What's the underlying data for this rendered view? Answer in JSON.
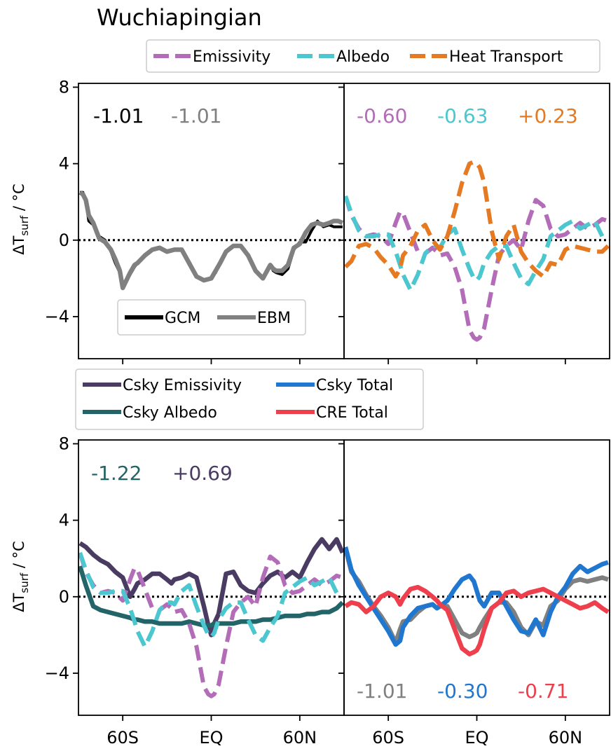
{
  "title": "Wuchiapingian",
  "ylabel_main": "ΔT",
  "ylabel_sub": "surf",
  "ylabel_unit": " / °C",
  "y_ticks": [
    8,
    4,
    0,
    -4
  ],
  "y_tick_labels": [
    "8",
    "4",
    "0",
    "−4"
  ],
  "x_ticks": [
    -60,
    0,
    60
  ],
  "x_tick_labels": [
    "60S",
    "EQ",
    "60N"
  ],
  "legend_top": [
    "Emissivity",
    "Albedo",
    "Heat Transport"
  ],
  "legend_top_left": [
    "GCM",
    "EBM"
  ],
  "legend_middle": [
    "Csky Emissivity",
    "Csky Total",
    "Csky Albedo",
    "CRE Total"
  ],
  "colors": {
    "GCM": "#000000",
    "EBM": "#808080",
    "Emissivity": "#b36db8",
    "Albedo": "#4cc7cf",
    "Heat Transport": "#e57a22",
    "Csky Emissivity": "#4a3b63",
    "Csky Albedo": "#226468",
    "Csky Total": "#1f77d0",
    "CRE Total": "#ee3f4d",
    "zero_line": "#000000"
  },
  "chart_data": [
    {
      "type": "line",
      "panel": "top-left",
      "xlim": [
        -90,
        90
      ],
      "ylim": [
        -6.2,
        8.2
      ],
      "zero_line": "dotted",
      "annotations": [
        "-1.01",
        "-1.01"
      ],
      "annotation_colors": [
        "#000000",
        "#808080"
      ],
      "legend": "lower-center",
      "x": [
        -89,
        -87,
        -85,
        -83,
        -80,
        -76,
        -72,
        -68,
        -65,
        -62,
        -60,
        -55,
        -52,
        -50,
        -45,
        -40,
        -35,
        -30,
        -25,
        -20,
        -15,
        -10,
        -5,
        0,
        3,
        6,
        10,
        15,
        20,
        25,
        30,
        35,
        40,
        42,
        44,
        48,
        52,
        56,
        60,
        64,
        68,
        72,
        76,
        80,
        83,
        86,
        89
      ],
      "series": [
        {
          "name": "GCM",
          "style": "solid",
          "values": [
            2.5,
            2.5,
            2.0,
            1.0,
            0.8,
            0.2,
            0.0,
            -0.6,
            -1.2,
            -1.7,
            -2.3,
            -1.8,
            -1.4,
            -1.2,
            -0.8,
            -0.5,
            -0.4,
            -0.6,
            -0.5,
            -0.5,
            -1.2,
            -1.9,
            -2.1,
            -2.0,
            -1.7,
            -1.2,
            -0.6,
            -0.3,
            -0.3,
            -0.8,
            -1.6,
            -2.0,
            -1.3,
            -1.6,
            -1.7,
            -1.8,
            -1.5,
            -0.5,
            -0.1,
            -0.1,
            0.5,
            1.0,
            0.7,
            0.8,
            0.7,
            0.7,
            0.7
          ]
        },
        {
          "name": "EBM",
          "style": "solid",
          "values": [
            2.5,
            2.4,
            2.1,
            1.3,
            0.9,
            0.1,
            -0.1,
            -0.5,
            -1.0,
            -1.6,
            -2.5,
            -1.7,
            -1.3,
            -1.2,
            -0.8,
            -0.5,
            -0.4,
            -0.6,
            -0.5,
            -0.5,
            -1.2,
            -1.9,
            -2.1,
            -2.0,
            -1.6,
            -1.2,
            -0.6,
            -0.3,
            -0.3,
            -0.8,
            -1.6,
            -2.0,
            -1.3,
            -1.5,
            -1.6,
            -1.6,
            -1.3,
            -0.4,
            -0.2,
            0.4,
            0.8,
            0.9,
            0.8,
            0.9,
            1.0,
            1.0,
            0.9
          ]
        }
      ]
    },
    {
      "type": "line",
      "panel": "top-right",
      "xlim": [
        -90,
        90
      ],
      "ylim": [
        -6.2,
        8.2
      ],
      "zero_line": "dotted",
      "annotations": [
        "-0.60",
        "-0.63",
        "+0.23"
      ],
      "annotation_colors": [
        "#b36db8",
        "#4cc7cf",
        "#e57a22"
      ],
      "x": [
        -89,
        -85,
        -80,
        -75,
        -70,
        -65,
        -60,
        -55,
        -52,
        -50,
        -45,
        -40,
        -35,
        -30,
        -27,
        -25,
        -20,
        -15,
        -10,
        -5,
        -2,
        0,
        2,
        5,
        10,
        15,
        20,
        25,
        30,
        35,
        40,
        45,
        50,
        55,
        60,
        65,
        70,
        75,
        80,
        85,
        89
      ],
      "series": [
        {
          "name": "Emissivity",
          "style": "dashed",
          "values": [
            2.3,
            1.3,
            0.6,
            0.2,
            0.3,
            0.2,
            -0.2,
            0.9,
            1.5,
            1.4,
            0.4,
            -0.6,
            -0.7,
            -0.4,
            -0.6,
            -0.8,
            -0.7,
            -1.4,
            -2.6,
            -4.7,
            -5.1,
            -5.2,
            -5.1,
            -4.6,
            -2.6,
            -0.8,
            -0.3,
            0.0,
            -0.5,
            1.0,
            2.1,
            1.8,
            0.6,
            0.2,
            0.3,
            0.6,
            0.9,
            0.6,
            0.8,
            1.1,
            1.0
          ]
        },
        {
          "name": "Albedo",
          "style": "dashed",
          "values": [
            2.3,
            1.4,
            0.5,
            0.2,
            0.2,
            0.3,
            0.3,
            -0.6,
            -1.3,
            -1.8,
            -2.6,
            -1.8,
            -0.7,
            -0.3,
            -0.3,
            -0.4,
            0.3,
            0.6,
            -0.5,
            -1.5,
            -2.0,
            -2.1,
            -1.9,
            -1.2,
            -0.6,
            -0.3,
            -0.3,
            -1.2,
            -2.0,
            -2.3,
            -1.6,
            -1.0,
            0.2,
            0.5,
            0.8,
            1.0,
            0.6,
            0.8,
            1.0,
            0.2,
            0.2
          ]
        },
        {
          "name": "Heat Transport",
          "style": "dashed",
          "values": [
            -1.4,
            -1.1,
            -0.3,
            -0.2,
            -0.4,
            -0.9,
            -1.3,
            -1.9,
            -1.5,
            -0.8,
            -0.3,
            0.5,
            0.8,
            0.0,
            -0.3,
            -0.5,
            0.2,
            1.5,
            3.0,
            4.0,
            4.1,
            4.0,
            3.8,
            3.0,
            0.5,
            -1.0,
            0.2,
            0.8,
            -0.6,
            -1.2,
            -1.6,
            -1.9,
            -1.2,
            -1.3,
            -0.5,
            -0.3,
            -0.4,
            -0.5,
            -0.6,
            -0.6,
            -0.3
          ]
        }
      ]
    },
    {
      "type": "line",
      "panel": "bottom-left",
      "xlim": [
        -90,
        90
      ],
      "ylim": [
        -6.2,
        8.2
      ],
      "zero_line": "dotted",
      "annotations": [
        "-1.22",
        "+0.69"
      ],
      "annotation_colors": [
        "#226468",
        "#4a3b63"
      ],
      "x": [
        -89,
        -85,
        -80,
        -75,
        -70,
        -65,
        -60,
        -55,
        -52,
        -50,
        -45,
        -40,
        -35,
        -30,
        -27,
        -25,
        -20,
        -15,
        -10,
        -5,
        -2,
        0,
        2,
        5,
        10,
        15,
        20,
        25,
        30,
        35,
        40,
        45,
        50,
        55,
        60,
        65,
        70,
        75,
        80,
        85,
        89
      ],
      "series": [
        {
          "name": "Csky Emissivity",
          "style": "solid",
          "values": [
            2.8,
            2.6,
            2.2,
            1.9,
            1.7,
            1.3,
            1.0,
            0.0,
            0.4,
            0.7,
            0.9,
            1.2,
            1.2,
            0.9,
            0.7,
            0.9,
            1.0,
            1.2,
            1.0,
            -0.5,
            -1.5,
            -2.0,
            -1.4,
            -0.9,
            1.2,
            1.3,
            0.6,
            0.3,
            0.2,
            0.7,
            1.1,
            1.3,
            1.0,
            1.3,
            1.0,
            1.8,
            2.5,
            3.0,
            2.5,
            3.0,
            2.3
          ]
        },
        {
          "name": "Csky Albedo",
          "style": "solid",
          "values": [
            1.6,
            0.6,
            -0.5,
            -0.7,
            -0.8,
            -0.9,
            -1.0,
            -1.1,
            -1.2,
            -1.2,
            -1.3,
            -1.3,
            -1.4,
            -1.4,
            -1.4,
            -1.4,
            -1.4,
            -1.3,
            -1.4,
            -1.5,
            -1.5,
            -1.5,
            -1.4,
            -1.4,
            -1.4,
            -1.4,
            -1.3,
            -1.3,
            -1.3,
            -1.2,
            -1.2,
            -1.1,
            -1.0,
            -1.0,
            -1.0,
            -0.9,
            -0.9,
            -0.8,
            -0.8,
            -0.6,
            -0.3
          ]
        },
        {
          "name": "Emissivity",
          "style": "dashed",
          "values": [
            2.3,
            1.3,
            0.6,
            0.2,
            0.3,
            0.2,
            -0.2,
            0.9,
            1.5,
            1.4,
            0.4,
            -0.6,
            -0.7,
            -0.4,
            -0.6,
            -0.8,
            -0.7,
            -1.4,
            -2.6,
            -4.7,
            -5.1,
            -5.2,
            -5.1,
            -4.6,
            -2.6,
            -0.8,
            -0.3,
            0.0,
            -0.5,
            1.0,
            2.1,
            1.8,
            0.6,
            0.2,
            0.3,
            0.6,
            0.9,
            0.6,
            0.8,
            1.1,
            1.0
          ]
        },
        {
          "name": "Albedo",
          "style": "dashed",
          "values": [
            2.3,
            1.4,
            0.5,
            0.2,
            0.2,
            0.3,
            0.3,
            -0.6,
            -1.3,
            -1.8,
            -2.6,
            -1.8,
            -0.7,
            -0.3,
            -0.3,
            -0.4,
            0.3,
            0.6,
            -0.5,
            -1.5,
            -2.0,
            -2.1,
            -1.9,
            -1.2,
            -0.6,
            -0.3,
            -0.3,
            -1.2,
            -2.0,
            -2.3,
            -1.6,
            -1.0,
            0.2,
            0.5,
            0.8,
            1.0,
            0.6,
            0.8,
            1.0,
            0.2,
            0.2
          ]
        }
      ]
    },
    {
      "type": "line",
      "panel": "bottom-right",
      "xlim": [
        -90,
        90
      ],
      "ylim": [
        -6.2,
        8.2
      ],
      "zero_line": "dotted",
      "annotations": [
        "-1.01",
        "-0.30",
        "-0.71"
      ],
      "annotation_colors": [
        "#808080",
        "#1f77d0",
        "#ee3f4d"
      ],
      "x": [
        -89,
        -85,
        -80,
        -75,
        -70,
        -65,
        -60,
        -55,
        -52,
        -50,
        -45,
        -40,
        -35,
        -30,
        -27,
        -25,
        -20,
        -15,
        -10,
        -5,
        -2,
        0,
        2,
        5,
        10,
        15,
        20,
        25,
        30,
        35,
        40,
        45,
        50,
        55,
        60,
        65,
        70,
        75,
        80,
        85,
        89
      ],
      "series": [
        {
          "name": "EBM",
          "style": "solid",
          "values": [
            2.5,
            1.3,
            0.8,
            0.1,
            -0.5,
            -1.0,
            -1.6,
            -2.4,
            -1.7,
            -1.3,
            -1.2,
            -0.8,
            -0.5,
            -0.4,
            -0.6,
            -0.5,
            -0.5,
            -1.2,
            -1.9,
            -2.1,
            -2.0,
            -1.9,
            -1.6,
            -1.2,
            -0.6,
            -0.3,
            -0.3,
            -0.8,
            -1.6,
            -2.0,
            -1.3,
            -1.5,
            -0.5,
            -0.2,
            0.4,
            0.8,
            0.9,
            0.8,
            0.9,
            1.0,
            0.9
          ]
        },
        {
          "name": "Csky Total",
          "style": "solid",
          "values": [
            2.6,
            1.4,
            0.6,
            0.0,
            -0.6,
            -1.2,
            -1.8,
            -2.5,
            -2.3,
            -1.6,
            -1.0,
            -0.6,
            -0.5,
            -0.4,
            -0.6,
            -0.5,
            -0.2,
            0.4,
            0.9,
            1.1,
            0.8,
            0.3,
            -0.2,
            -0.5,
            0.2,
            0.2,
            -0.5,
            -1.2,
            -1.8,
            -1.9,
            -1.2,
            -2.0,
            -0.8,
            0.0,
            0.5,
            1.2,
            1.6,
            1.3,
            1.5,
            1.7,
            1.8
          ]
        },
        {
          "name": "CRE Total",
          "style": "solid",
          "values": [
            -0.5,
            -0.3,
            -0.4,
            -0.8,
            -0.5,
            0.0,
            0.2,
            0.0,
            -0.4,
            -0.1,
            0.4,
            0.5,
            0.3,
            0.0,
            -0.2,
            -0.4,
            -0.7,
            -1.7,
            -2.7,
            -3.0,
            -2.9,
            -2.8,
            -2.5,
            -1.7,
            -0.6,
            -0.3,
            0.2,
            0.3,
            0.0,
            0.2,
            0.3,
            0.4,
            0.2,
            0.0,
            -0.2,
            -0.4,
            -0.6,
            -0.5,
            -0.3,
            -0.6,
            -0.8
          ]
        }
      ]
    }
  ]
}
